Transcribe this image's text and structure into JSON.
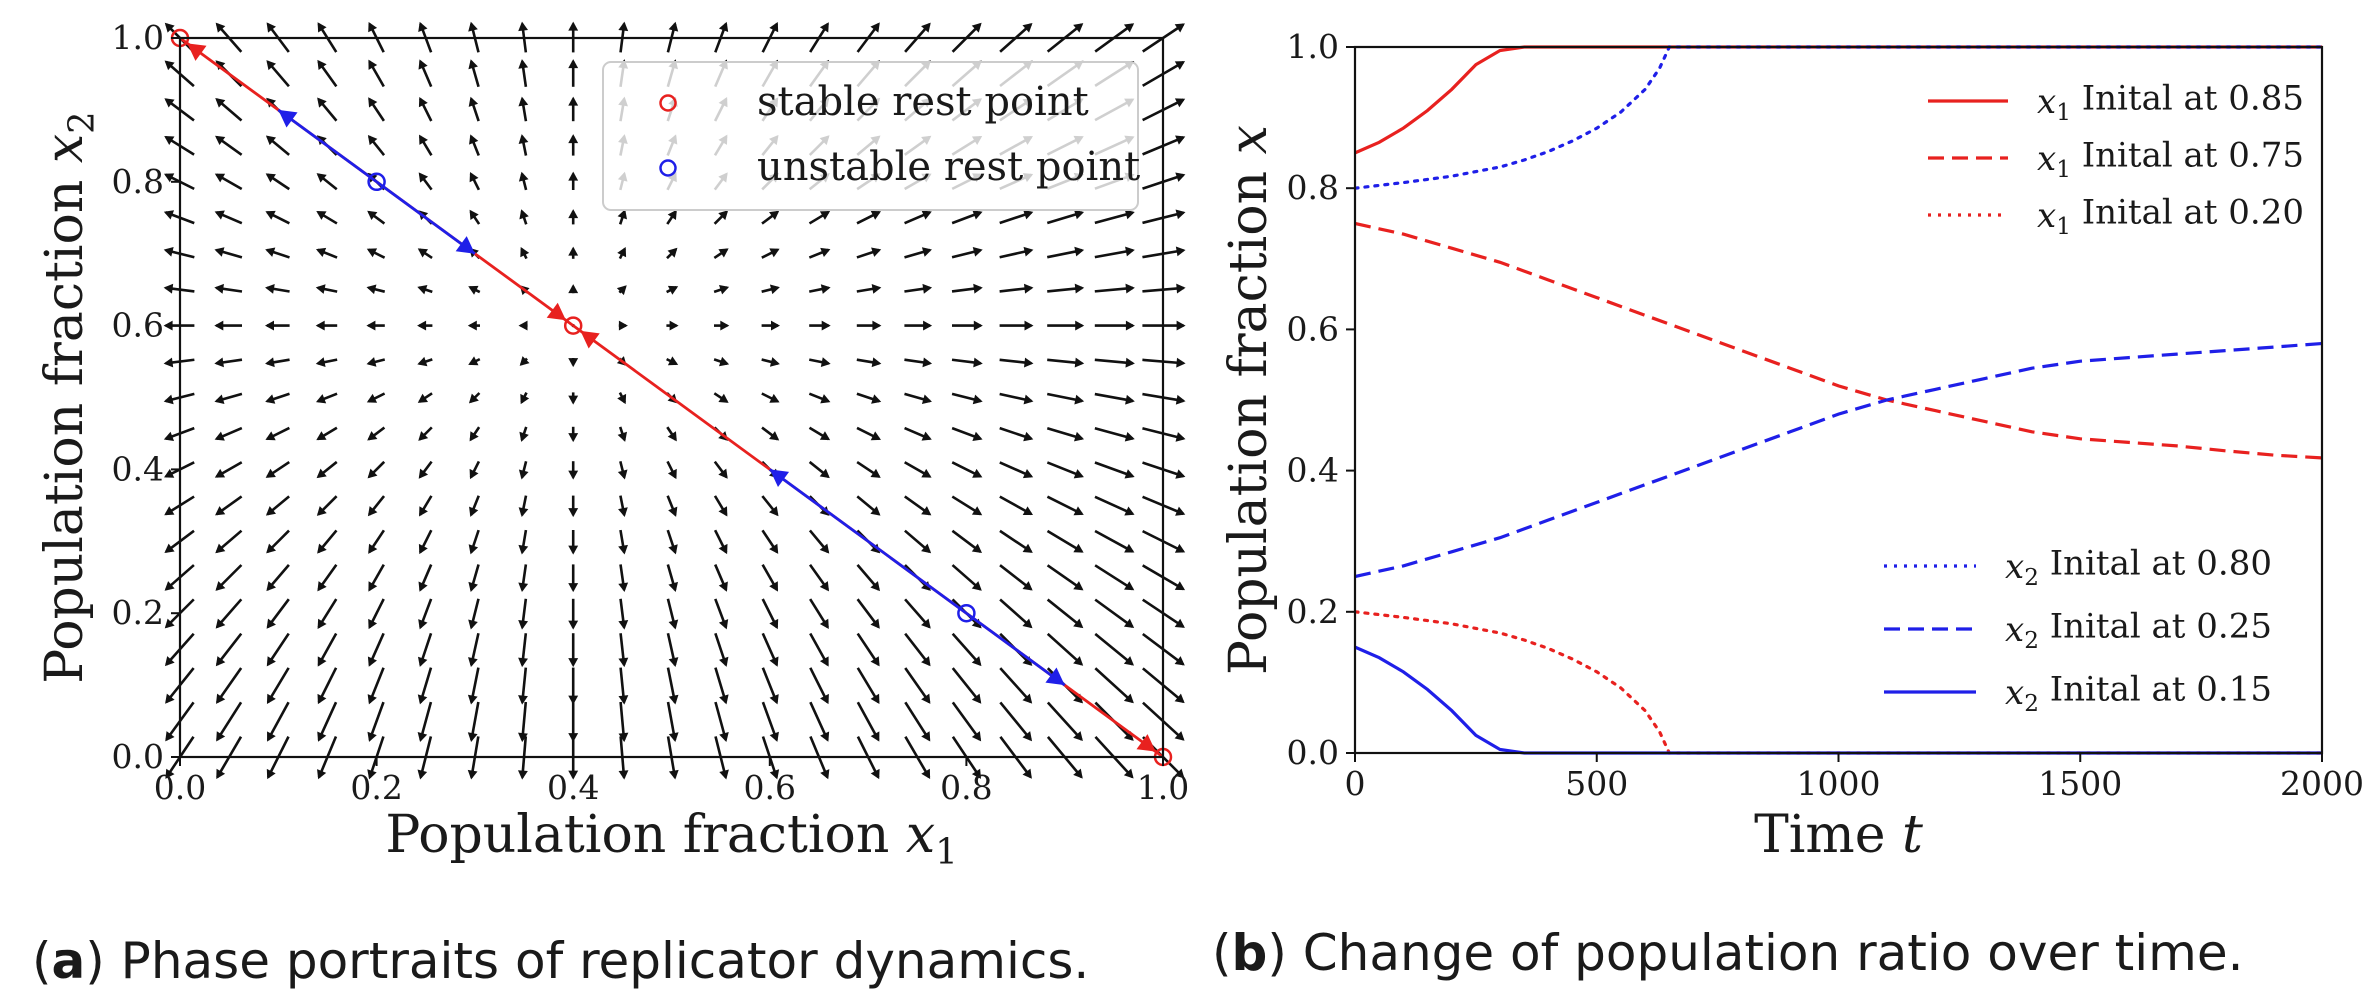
{
  "chart_data": [
    {
      "type": "quiver",
      "panel": "a",
      "caption_letter": "a",
      "caption_text": "Phase portraits of replicator dynamics.",
      "xlabel_text": "Population fraction",
      "xlabel_var": "x",
      "xlabel_sub": "1",
      "ylabel_text": "Population fraction",
      "ylabel_var": "x",
      "ylabel_sub": "2",
      "xlim": [
        0,
        1
      ],
      "ylim": [
        0,
        1
      ],
      "xticks": [
        "0.0",
        "0.2",
        "0.4",
        "0.6",
        "0.8",
        "1.0"
      ],
      "yticks": [
        "0.0",
        "0.2",
        "0.4",
        "0.6",
        "0.8",
        "1.0"
      ],
      "legend_position": "top-right",
      "legend": [
        {
          "label": "stable rest point",
          "color": "#e8211f"
        },
        {
          "label": "unstable rest point",
          "color": "#1f1fe8"
        }
      ],
      "stable_points": [
        [
          0,
          1
        ],
        [
          0.4,
          0.6
        ],
        [
          1,
          0
        ]
      ],
      "unstable_points": [
        [
          0.2,
          0.8
        ],
        [
          0.8,
          0.2
        ]
      ],
      "boundary_segments": [
        {
          "from": [
            0.2,
            0.8
          ],
          "to": [
            0,
            1
          ],
          "color": "red"
        },
        {
          "from": [
            0.2,
            0.8
          ],
          "to": [
            0.4,
            0.6
          ],
          "color": "red"
        },
        {
          "from": [
            0.8,
            0.2
          ],
          "to": [
            0.4,
            0.6
          ],
          "color": "red"
        },
        {
          "from": [
            0.8,
            0.2
          ],
          "to": [
            1,
            0
          ],
          "color": "red"
        }
      ],
      "field_fixed_point": [
        0.4,
        0.6
      ],
      "grid": false
    },
    {
      "type": "line",
      "panel": "b",
      "caption_letter": "b",
      "caption_text": "Change of population ratio over time.",
      "xlabel_text": "Time",
      "xlabel_var": "t",
      "ylabel_text": "Population fraction",
      "ylabel_var": "x",
      "xlim": [
        0,
        2000
      ],
      "ylim": [
        0,
        1
      ],
      "xticks": [
        "0",
        "500",
        "1000",
        "1500",
        "2000"
      ],
      "yticks": [
        "0.0",
        "0.2",
        "0.4",
        "0.6",
        "0.8",
        "1.0"
      ],
      "legend_upper_position": "top-right",
      "legend_lower_position": "bottom-right",
      "series": [
        {
          "name": "x1 Inital at 0.85",
          "var": "x",
          "sub": "1",
          "rest": "Inital at 0.85",
          "color": "#e8211f",
          "style": "solid",
          "legend_group": "upper",
          "x": [
            0,
            50,
            100,
            150,
            200,
            250,
            300,
            350,
            2000
          ],
          "y": [
            0.85,
            0.865,
            0.885,
            0.91,
            0.94,
            0.975,
            0.995,
            1.0,
            1.0
          ]
        },
        {
          "name": "x1 Inital at 0.75",
          "var": "x",
          "sub": "1",
          "rest": "Inital at 0.75",
          "color": "#e8211f",
          "style": "dashed",
          "legend_group": "upper",
          "x": [
            0,
            100,
            200,
            300,
            400,
            500,
            600,
            700,
            800,
            900,
            1000,
            1100,
            1200,
            1300,
            1400,
            1500,
            1600,
            1700,
            1800,
            1900,
            2000
          ],
          "y": [
            0.75,
            0.735,
            0.715,
            0.695,
            0.67,
            0.645,
            0.62,
            0.595,
            0.57,
            0.545,
            0.52,
            0.5,
            0.485,
            0.47,
            0.455,
            0.445,
            0.44,
            0.435,
            0.428,
            0.422,
            0.418
          ]
        },
        {
          "name": "x1 Inital at 0.20",
          "var": "x",
          "sub": "1",
          "rest": "Inital at 0.20",
          "color": "#e8211f",
          "style": "dotted",
          "legend_group": "upper",
          "x": [
            0,
            100,
            200,
            300,
            350,
            400,
            450,
            500,
            550,
            600,
            630,
            650,
            2000
          ],
          "y": [
            0.2,
            0.192,
            0.183,
            0.17,
            0.16,
            0.148,
            0.133,
            0.115,
            0.092,
            0.06,
            0.03,
            0.0,
            0.0
          ]
        },
        {
          "name": "x2 Inital at 0.80",
          "var": "x",
          "sub": "2",
          "rest": "Inital at 0.80",
          "color": "#1f1fe8",
          "style": "dotted",
          "legend_group": "lower",
          "x": [
            0,
            100,
            200,
            300,
            350,
            400,
            450,
            500,
            550,
            600,
            630,
            650,
            2000
          ],
          "y": [
            0.8,
            0.808,
            0.817,
            0.83,
            0.84,
            0.852,
            0.867,
            0.885,
            0.908,
            0.94,
            0.97,
            1.0,
            1.0
          ]
        },
        {
          "name": "x2 Inital at 0.25",
          "var": "x",
          "sub": "2",
          "rest": "Inital at 0.25",
          "color": "#1f1fe8",
          "style": "dashed",
          "legend_group": "lower",
          "x": [
            0,
            100,
            200,
            300,
            400,
            500,
            600,
            700,
            800,
            900,
            1000,
            1100,
            1200,
            1300,
            1400,
            1500,
            1600,
            1700,
            1800,
            1900,
            2000
          ],
          "y": [
            0.25,
            0.265,
            0.285,
            0.305,
            0.33,
            0.355,
            0.38,
            0.405,
            0.43,
            0.455,
            0.48,
            0.5,
            0.515,
            0.53,
            0.545,
            0.555,
            0.56,
            0.565,
            0.57,
            0.575,
            0.58
          ]
        },
        {
          "name": "x2 Inital at 0.15",
          "var": "x",
          "sub": "2",
          "rest": "Inital at 0.15",
          "color": "#1f1fe8",
          "style": "solid",
          "legend_group": "lower",
          "x": [
            0,
            50,
            100,
            150,
            200,
            250,
            300,
            350,
            2000
          ],
          "y": [
            0.15,
            0.135,
            0.115,
            0.09,
            0.06,
            0.025,
            0.005,
            0.0,
            0.0
          ]
        }
      ],
      "grid": false
    }
  ]
}
